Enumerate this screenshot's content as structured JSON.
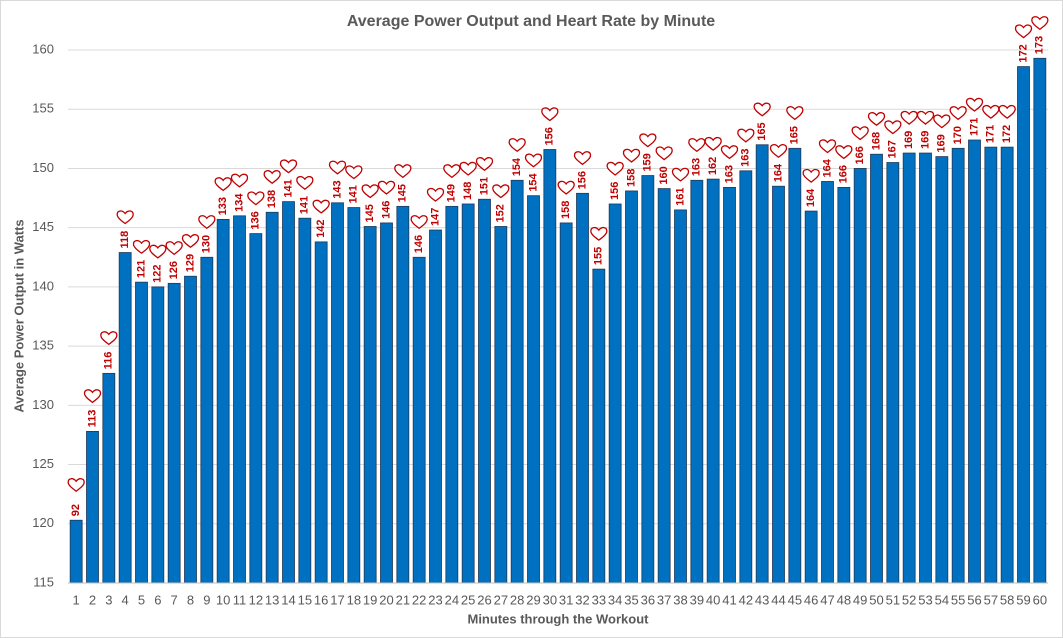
{
  "chart_data": {
    "type": "bar",
    "title": "Average Power Output and Heart Rate by Minute",
    "x_label": "Minutes through the Workout",
    "y_label": "Average Power Output in Watts",
    "categories": [
      "1",
      "2",
      "3",
      "4",
      "5",
      "6",
      "7",
      "8",
      "9",
      "10",
      "11",
      "12",
      "13",
      "14",
      "15",
      "16",
      "17",
      "18",
      "19",
      "20",
      "21",
      "22",
      "23",
      "24",
      "25",
      "26",
      "27",
      "28",
      "29",
      "30",
      "31",
      "32",
      "33",
      "34",
      "35",
      "36",
      "37",
      "38",
      "39",
      "40",
      "41",
      "42",
      "43",
      "44",
      "45",
      "46",
      "47",
      "48",
      "49",
      "50",
      "51",
      "52",
      "53",
      "54",
      "55",
      "56",
      "57",
      "58",
      "59",
      "60"
    ],
    "values": [
      120.3,
      127.8,
      132.7,
      142.9,
      140.4,
      140.0,
      140.3,
      140.9,
      142.5,
      145.7,
      146.0,
      144.5,
      146.3,
      147.2,
      145.8,
      143.8,
      147.1,
      146.7,
      145.1,
      145.4,
      146.8,
      142.5,
      144.8,
      146.8,
      147.0,
      147.4,
      145.1,
      149.0,
      147.7,
      151.6,
      145.4,
      147.9,
      141.5,
      147.0,
      148.1,
      149.4,
      148.3,
      146.5,
      149.0,
      149.1,
      148.4,
      149.8,
      152.0,
      148.5,
      151.7,
      146.4,
      148.9,
      148.4,
      150.0,
      151.2,
      150.5,
      151.3,
      151.3,
      151.0,
      151.7,
      152.4,
      151.8,
      151.8,
      158.6,
      159.3
    ],
    "heart_rate": [
      92,
      113,
      116,
      118,
      121,
      122,
      126,
      129,
      130,
      133,
      134,
      136,
      138,
      141,
      141,
      142,
      143,
      141,
      145,
      146,
      145,
      146,
      147,
      149,
      148,
      151,
      152,
      154,
      154,
      156,
      158,
      156,
      155,
      156,
      158,
      159,
      160,
      161,
      163,
      162,
      163,
      163,
      165,
      164,
      165,
      164,
      164,
      166,
      166,
      168,
      167,
      169,
      169,
      169,
      170,
      171,
      171,
      172,
      172,
      173
    ],
    "color": "#0070c0",
    "heart_color": "#c00000",
    "ylim": [
      115,
      160
    ],
    "yticks": [
      115,
      120,
      125,
      130,
      135,
      140,
      145,
      150,
      155,
      160
    ],
    "grid": true
  }
}
